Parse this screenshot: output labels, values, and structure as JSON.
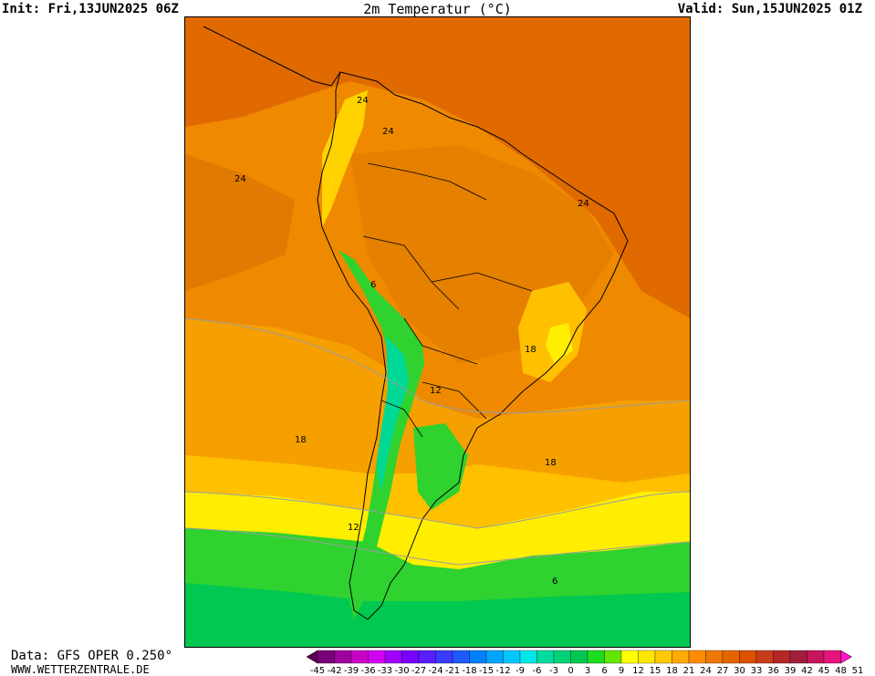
{
  "header": {
    "init": "Init: Fri,13JUN2025 06Z",
    "title": "2m Temperatur (°C)",
    "valid": "Valid: Sun,15JUN2025 01Z"
  },
  "footer": {
    "source": "Data: GFS OPER 0.250°",
    "website": "WWW.WETTERZENTRALE.DE"
  },
  "map": {
    "region": "South America",
    "contour_labels": [
      "24",
      "24",
      "24",
      "24",
      "6",
      "18",
      "12",
      "18",
      "18",
      "12",
      "6"
    ]
  },
  "legend": {
    "values": [
      "-45",
      "-42",
      "-39",
      "-36",
      "-33",
      "-30",
      "-27",
      "-24",
      "-21",
      "-18",
      "-15",
      "-12",
      "-9",
      "-6",
      "-3",
      "0",
      "3",
      "6",
      "9",
      "12",
      "15",
      "18",
      "21",
      "24",
      "27",
      "30",
      "33",
      "36",
      "39",
      "42",
      "45",
      "48",
      "51"
    ],
    "colors": [
      "#5a0050",
      "#780078",
      "#a000a0",
      "#c800c8",
      "#d200f0",
      "#a000ff",
      "#7800ff",
      "#5a1eff",
      "#3c3cff",
      "#1e5aff",
      "#0080ff",
      "#00a5ff",
      "#00c8ff",
      "#00e6e6",
      "#00dca0",
      "#00d278",
      "#00c850",
      "#1edc1e",
      "#64e600",
      "#ffff00",
      "#ffe600",
      "#ffc800",
      "#ffaa00",
      "#ff8c00",
      "#f07800",
      "#e66400",
      "#dc5000",
      "#c83c1e",
      "#b42828",
      "#a01e3c",
      "#c8145a",
      "#e6147d",
      "#ff14c8"
    ]
  },
  "colors": {
    "hot": "#e06a00",
    "warm": "#ef8a00",
    "mild": "#f5a000",
    "cool_yellow": "#ffd200",
    "yellow": "#ffee00",
    "green": "#2fd22f",
    "dark_green": "#00c850",
    "teal": "#00d896"
  }
}
